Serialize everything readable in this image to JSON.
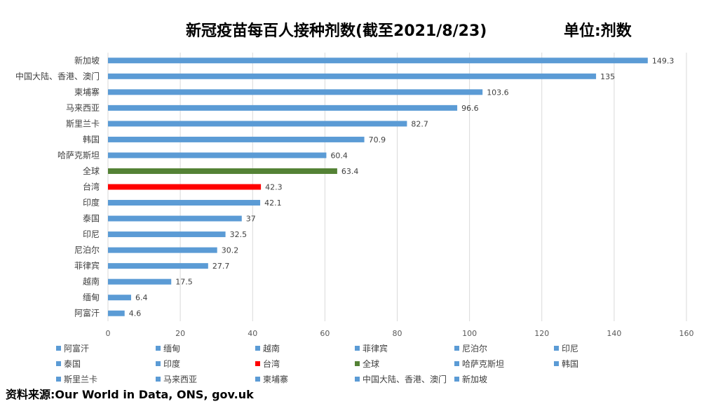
{
  "title": "新冠疫苗每百人接种剂数(截至2021/8/23)",
  "unit": "单位:剂数",
  "source": "资料来源:Our World in Data, ONS, gov.uk",
  "colors": {
    "default": "#5b9bd5",
    "global": "#548235",
    "taiwan": "#ff0000"
  },
  "chart_data": {
    "type": "bar",
    "orientation": "horizontal",
    "categories": [
      "新加坡",
      "中国大陆、香港、澳门",
      "柬埔寨",
      "马来西亚",
      "斯里兰卡",
      "韩国",
      "哈萨克斯坦",
      "全球",
      "台湾",
      "印度",
      "泰国",
      "印尼",
      "尼泊尔",
      "菲律宾",
      "越南",
      "缅甸",
      "阿富汗"
    ],
    "values": [
      149.3,
      135,
      103.6,
      96.6,
      82.7,
      70.9,
      60.4,
      63.4,
      42.3,
      42.1,
      37,
      32.5,
      30.2,
      27.7,
      17.5,
      6.4,
      4.6
    ],
    "value_labels": [
      "149.3",
      "135",
      "103.6",
      "96.6",
      "82.7",
      "70.9",
      "60.4",
      "63.4",
      "42.3",
      "42.1",
      "37",
      "32.5",
      "30.2",
      "27.7",
      "17.5",
      "6.4",
      "4.6"
    ],
    "bar_colors": [
      "default",
      "default",
      "default",
      "default",
      "default",
      "default",
      "default",
      "global",
      "taiwan",
      "default",
      "default",
      "default",
      "default",
      "default",
      "default",
      "default",
      "default"
    ],
    "xlim": [
      0,
      160
    ],
    "xticks": [
      "0",
      "20",
      "40",
      "60",
      "80",
      "100",
      "120",
      "140",
      "160"
    ],
    "grid": "vertical",
    "legend_position": "bottom",
    "legend": [
      {
        "name": "阿富汗",
        "color": "default"
      },
      {
        "name": "缅甸",
        "color": "default"
      },
      {
        "name": "越南",
        "color": "default"
      },
      {
        "name": "菲律宾",
        "color": "default"
      },
      {
        "name": "尼泊尔",
        "color": "default"
      },
      {
        "name": "印尼",
        "color": "default"
      },
      {
        "name": "泰国",
        "color": "default"
      },
      {
        "name": "印度",
        "color": "default"
      },
      {
        "name": "台湾",
        "color": "taiwan"
      },
      {
        "name": "全球",
        "color": "global"
      },
      {
        "name": "哈萨克斯坦",
        "color": "default"
      },
      {
        "name": "韩国",
        "color": "default"
      },
      {
        "name": "斯里兰卡",
        "color": "default"
      },
      {
        "name": "马来西亚",
        "color": "default"
      },
      {
        "name": "柬埔寨",
        "color": "default"
      },
      {
        "name": "中国大陆、香港、澳门",
        "color": "default"
      },
      {
        "name": "新加坡",
        "color": "default"
      }
    ]
  }
}
